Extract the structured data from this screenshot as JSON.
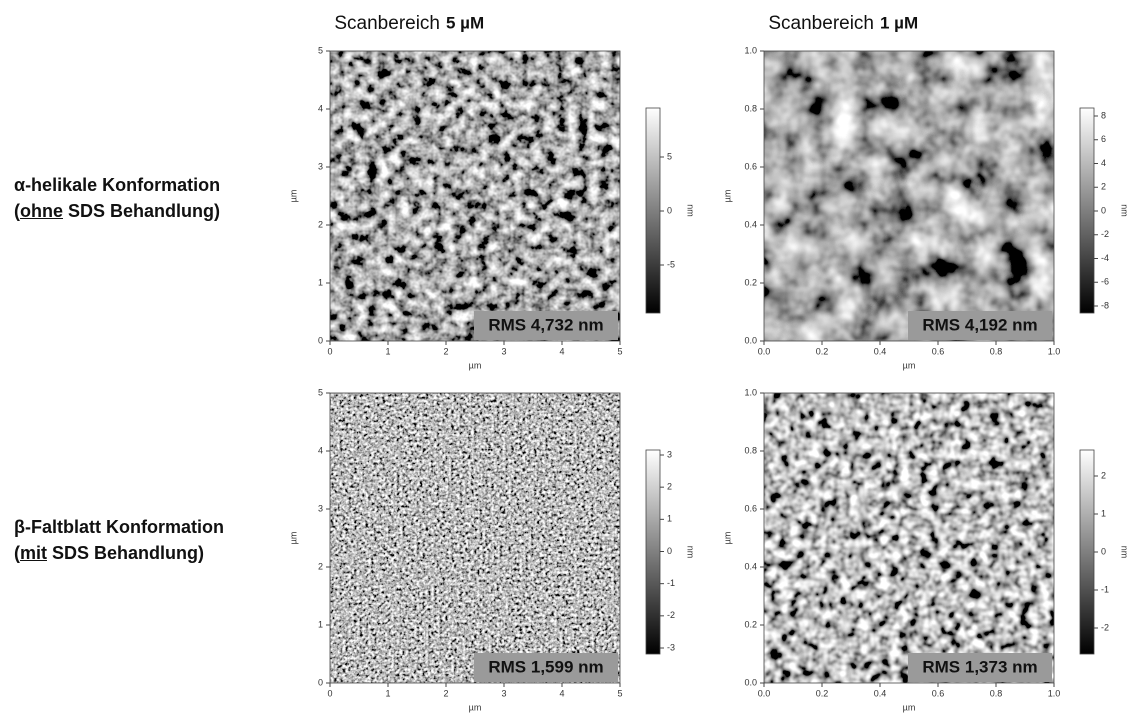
{
  "header": {
    "columns": [
      {
        "text": "Scanbereich",
        "bold": "5 µM"
      },
      {
        "text": "Scanbereich",
        "bold": "1 µM"
      }
    ]
  },
  "rows": [
    {
      "line1": "α-helikale Konformation",
      "open": "(",
      "underlined": "ohne",
      "rest": "SDS Behandlung)"
    },
    {
      "line1": "β-Faltblatt Konformation",
      "open": "(",
      "underlined": "mit",
      "rest": "SDS Behandlung)"
    }
  ],
  "panels": [
    {
      "xticks": [
        0,
        1,
        2,
        3,
        4,
        5
      ],
      "yticks": [
        0,
        1,
        2,
        3,
        4,
        5
      ],
      "xlabel": "µm",
      "ylabel": "µm",
      "colorbar": {
        "ticks": [
          5,
          0,
          -5
        ],
        "unit": "nm"
      },
      "rms": "RMS 4,732 nm"
    },
    {
      "xticks": [
        "0.0",
        "0.2",
        "0.4",
        "0.6",
        "0.8",
        "1.0"
      ],
      "yticks": [
        "0.0",
        "0.2",
        "0.4",
        "0.6",
        "0.8",
        "1.0"
      ],
      "xlabel": "µm",
      "ylabel": "µm",
      "colorbar": {
        "ticks": [
          8,
          6,
          4,
          2,
          0,
          -2,
          -4,
          -6,
          -8
        ],
        "unit": "nm"
      },
      "rms": "RMS 4,192 nm"
    },
    {
      "xticks": [
        0,
        1,
        2,
        3,
        4,
        5
      ],
      "yticks": [
        0,
        1,
        2,
        3,
        4,
        5
      ],
      "xlabel": "µm",
      "ylabel": "µm",
      "colorbar": {
        "ticks": [
          3,
          2,
          1,
          0,
          -1,
          -2,
          -3
        ],
        "unit": "nm"
      },
      "rms": "RMS 1,599 nm"
    },
    {
      "xticks": [
        "0.0",
        "0.2",
        "0.4",
        "0.6",
        "0.8",
        "1.0"
      ],
      "yticks": [
        "0.0",
        "0.2",
        "0.4",
        "0.6",
        "0.8",
        "1.0"
      ],
      "xlabel": "µm",
      "ylabel": "µm",
      "colorbar": {
        "ticks": [
          2,
          1,
          0,
          -1,
          -2
        ],
        "unit": "nm"
      },
      "rms": "RMS 1,373 nm"
    }
  ]
}
